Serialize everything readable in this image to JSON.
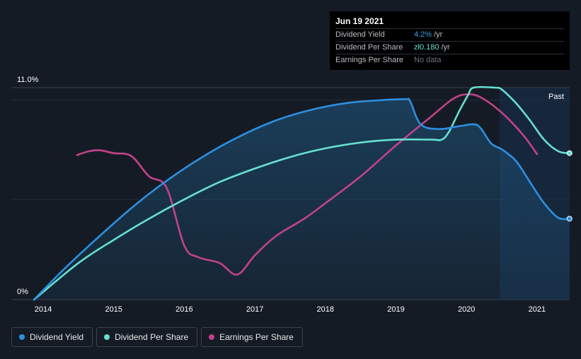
{
  "tooltip": {
    "date": "Jun 19 2021",
    "rows": [
      {
        "label": "Dividend Yield",
        "value": "4.2%",
        "unit": "/yr"
      },
      {
        "label": "Dividend Per Share",
        "value": "zł0.180",
        "unit": "/yr"
      },
      {
        "label": "Earnings Per Share",
        "value": "No data",
        "unit": ""
      }
    ]
  },
  "past_label": "Past",
  "colors": {
    "dividend_yield": "#2d8fe0",
    "dividend_per_share": "#66e0d0",
    "earnings_per_share": "#c3428a",
    "background": "#151b24"
  },
  "legend": [
    {
      "label": "Dividend Yield",
      "color": "#2d8fe0"
    },
    {
      "label": "Dividend Per Share",
      "color": "#66e0d0"
    },
    {
      "label": "Earnings Per Share",
      "color": "#c3428a"
    }
  ],
  "chart_data": {
    "type": "line",
    "xlabel": "",
    "ylabel": "",
    "y_tick_labels": [
      "11.0%",
      "0%"
    ],
    "ylim": [
      0,
      11
    ],
    "xlim": [
      2013.87,
      2021.46
    ],
    "x_ticks": [
      2014,
      2015,
      2016,
      2017,
      2018,
      2019,
      2020,
      2021
    ],
    "grid": true,
    "legend_position": "bottom-left",
    "series": [
      {
        "name": "Dividend Yield",
        "points": [
          [
            2013.87,
            0
          ],
          [
            2014.3,
            1.6
          ],
          [
            2014.8,
            3.3
          ],
          [
            2015.3,
            4.9
          ],
          [
            2015.8,
            6.3
          ],
          [
            2016.3,
            7.5
          ],
          [
            2016.8,
            8.5
          ],
          [
            2017.3,
            9.3
          ],
          [
            2017.8,
            9.85
          ],
          [
            2018.3,
            10.2
          ],
          [
            2018.8,
            10.35
          ],
          [
            2019.13,
            10.4
          ],
          [
            2019.2,
            10.3
          ],
          [
            2019.35,
            9.1
          ],
          [
            2019.6,
            8.85
          ],
          [
            2019.9,
            9.0
          ],
          [
            2020.1,
            9.1
          ],
          [
            2020.2,
            8.9
          ],
          [
            2020.35,
            8.1
          ],
          [
            2020.5,
            7.8
          ],
          [
            2020.7,
            7.2
          ],
          [
            2020.9,
            6.1
          ],
          [
            2021.1,
            5.0
          ],
          [
            2021.3,
            4.25
          ],
          [
            2021.46,
            4.2
          ]
        ]
      },
      {
        "name": "Dividend Per Share",
        "points": [
          [
            2013.87,
            0
          ],
          [
            2014.5,
            1.9
          ],
          [
            2015.0,
            3.1
          ],
          [
            2015.5,
            4.2
          ],
          [
            2016.0,
            5.2
          ],
          [
            2016.5,
            6.1
          ],
          [
            2017.0,
            6.8
          ],
          [
            2017.5,
            7.4
          ],
          [
            2018.0,
            7.85
          ],
          [
            2018.5,
            8.15
          ],
          [
            2019.0,
            8.3
          ],
          [
            2019.5,
            8.3
          ],
          [
            2019.65,
            8.3
          ],
          [
            2019.75,
            8.7
          ],
          [
            2019.9,
            9.8
          ],
          [
            2020.02,
            10.6
          ],
          [
            2020.1,
            11.0
          ],
          [
            2020.4,
            11.0
          ],
          [
            2020.5,
            10.9
          ],
          [
            2020.7,
            10.2
          ],
          [
            2020.9,
            9.3
          ],
          [
            2021.1,
            8.3
          ],
          [
            2021.3,
            7.7
          ],
          [
            2021.46,
            7.6
          ]
        ]
      },
      {
        "name": "Earnings Per Share",
        "points": [
          [
            2014.48,
            7.5
          ],
          [
            2014.65,
            7.7
          ],
          [
            2014.8,
            7.75
          ],
          [
            2015.0,
            7.6
          ],
          [
            2015.25,
            7.45
          ],
          [
            2015.5,
            6.4
          ],
          [
            2015.75,
            5.8
          ],
          [
            2016.0,
            2.8
          ],
          [
            2016.2,
            2.2
          ],
          [
            2016.5,
            1.9
          ],
          [
            2016.75,
            1.3
          ],
          [
            2017.0,
            2.3
          ],
          [
            2017.3,
            3.3
          ],
          [
            2017.7,
            4.2
          ],
          [
            2018.0,
            5.0
          ],
          [
            2018.5,
            6.4
          ],
          [
            2019.0,
            8.0
          ],
          [
            2019.5,
            9.5
          ],
          [
            2019.8,
            10.4
          ],
          [
            2020.0,
            10.65
          ],
          [
            2020.2,
            10.5
          ],
          [
            2020.5,
            9.7
          ],
          [
            2020.8,
            8.55
          ],
          [
            2021.0,
            7.55
          ]
        ]
      }
    ]
  }
}
